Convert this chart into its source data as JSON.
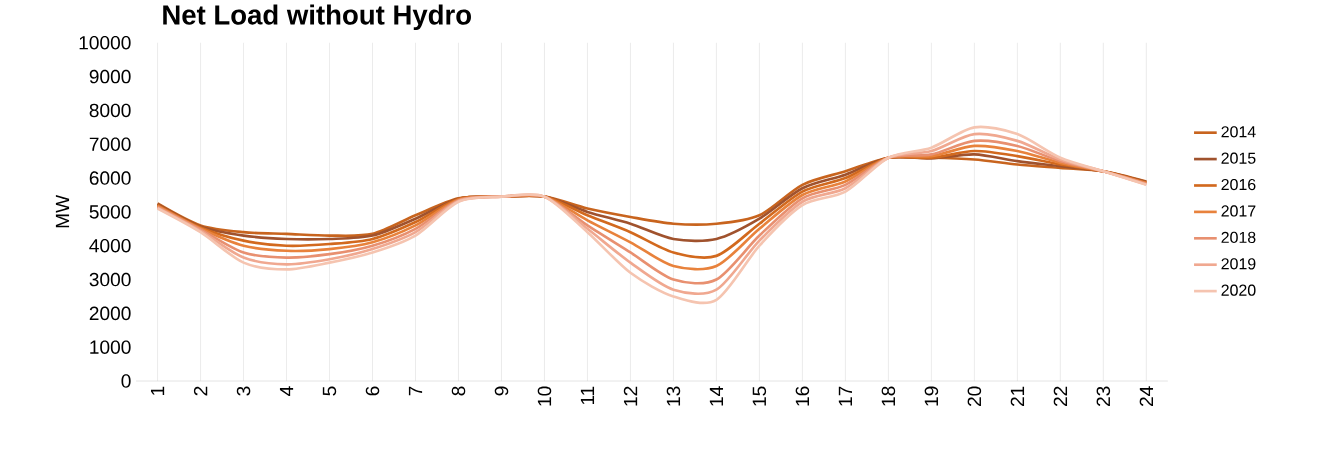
{
  "chart_data": {
    "type": "line",
    "title": "Net Load without Hydro",
    "ylabel": "MW",
    "categories": [
      "1",
      "2",
      "3",
      "4",
      "5",
      "6",
      "7",
      "8",
      "9",
      "10",
      "11",
      "12",
      "13",
      "14",
      "15",
      "16",
      "17",
      "18",
      "19",
      "20",
      "21",
      "22",
      "23",
      "24"
    ],
    "ylim": [
      0,
      10000
    ],
    "yticks": [
      0,
      1000,
      2000,
      3000,
      4000,
      5000,
      6000,
      7000,
      8000,
      9000,
      10000
    ],
    "grid": "x",
    "legend": "right",
    "marker": "none",
    "line_style": "solid",
    "series": [
      {
        "name": "2014",
        "color": "#c8641e",
        "values": [
          5250,
          4600,
          4400,
          4350,
          4300,
          4350,
          4900,
          5400,
          5450,
          5450,
          5100,
          4850,
          4650,
          4650,
          4900,
          5800,
          6200,
          6600,
          6600,
          6550,
          6400,
          6300,
          6200,
          5900
        ]
      },
      {
        "name": "2015",
        "color": "#a0522d",
        "values": [
          5230,
          4570,
          4300,
          4200,
          4200,
          4300,
          4800,
          5390,
          5450,
          5450,
          5000,
          4650,
          4200,
          4200,
          4800,
          5700,
          6100,
          6600,
          6580,
          6700,
          6500,
          6350,
          6200,
          5880
        ]
      },
      {
        "name": "2016",
        "color": "#d2691e",
        "values": [
          5200,
          4540,
          4150,
          4000,
          4050,
          4200,
          4700,
          5380,
          5450,
          5450,
          4900,
          4400,
          3800,
          3700,
          4650,
          5600,
          6000,
          6600,
          6600,
          6800,
          6650,
          6400,
          6200,
          5860
        ]
      },
      {
        "name": "2017",
        "color": "#e8823c",
        "values": [
          5180,
          4510,
          4000,
          3850,
          3900,
          4100,
          4600,
          5360,
          5450,
          5450,
          4750,
          4100,
          3400,
          3400,
          4500,
          5500,
          5900,
          6600,
          6650,
          6950,
          6800,
          6450,
          6200,
          5850
        ]
      },
      {
        "name": "2018",
        "color": "#e89070",
        "values": [
          5150,
          4480,
          3800,
          3650,
          3750,
          4000,
          4500,
          5340,
          5450,
          5450,
          4600,
          3800,
          3000,
          3000,
          4300,
          5400,
          5800,
          6600,
          6700,
          7100,
          6950,
          6500,
          6200,
          5830
        ]
      },
      {
        "name": "2019",
        "color": "#f0a890",
        "values": [
          5120,
          4440,
          3650,
          3450,
          3600,
          3900,
          4400,
          5320,
          5450,
          5450,
          4500,
          3500,
          2700,
          2700,
          4150,
          5300,
          5700,
          6600,
          6800,
          7300,
          7100,
          6550,
          6200,
          5810
        ]
      },
      {
        "name": "2020",
        "color": "#f5c4b0",
        "values": [
          5100,
          4400,
          3500,
          3300,
          3500,
          3800,
          4300,
          5300,
          5450,
          5450,
          4400,
          3200,
          2500,
          2400,
          4000,
          5200,
          5600,
          6600,
          6900,
          7500,
          7300,
          6600,
          6200,
          5800
        ]
      }
    ]
  }
}
